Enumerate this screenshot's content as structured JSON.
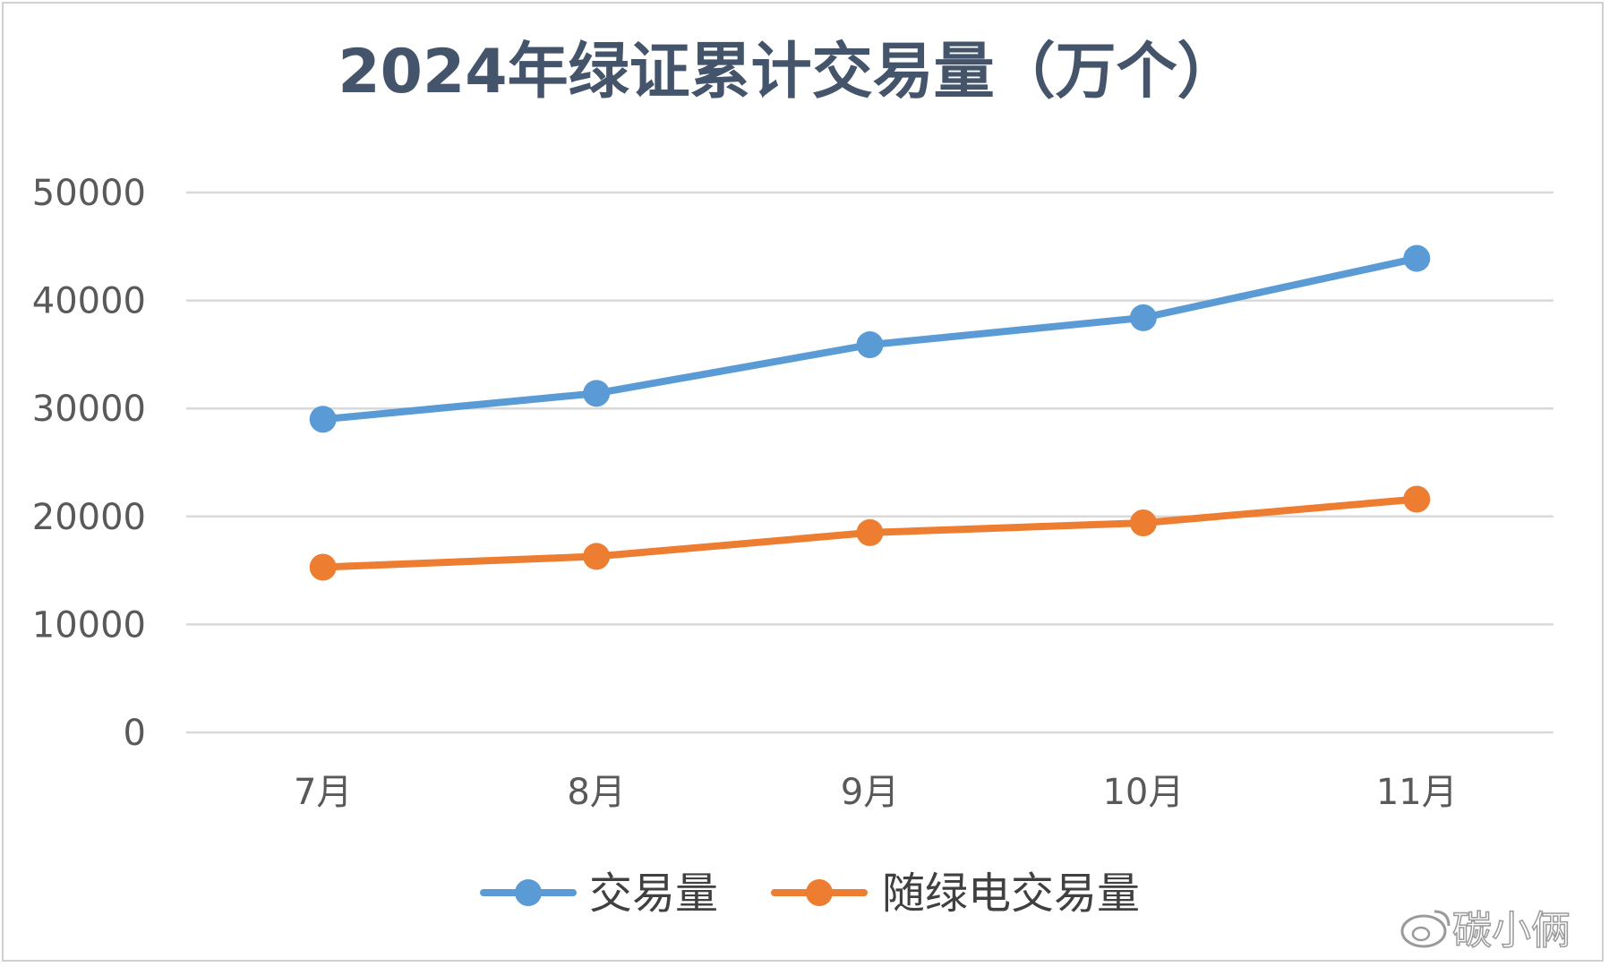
{
  "chart_data": {
    "type": "line",
    "title": "2024年绿证累计交易量（万个）",
    "categories": [
      "7月",
      "8月",
      "9月",
      "10月",
      "11月"
    ],
    "series": [
      {
        "name": "交易量",
        "values": [
          29000,
          31400,
          35900,
          38400,
          43900
        ],
        "color": "#5b9bd5"
      },
      {
        "name": "随绿电交易量",
        "values": [
          15300,
          16300,
          18500,
          19400,
          21600
        ],
        "color": "#ed7d31"
      }
    ],
    "ylim": [
      0,
      50000
    ],
    "yticks": [
      0,
      10000,
      20000,
      30000,
      40000,
      50000
    ],
    "xlabel": "",
    "ylabel": "",
    "grid": true,
    "legend_position": "bottom"
  },
  "watermark": {
    "text": "碳小俩"
  }
}
